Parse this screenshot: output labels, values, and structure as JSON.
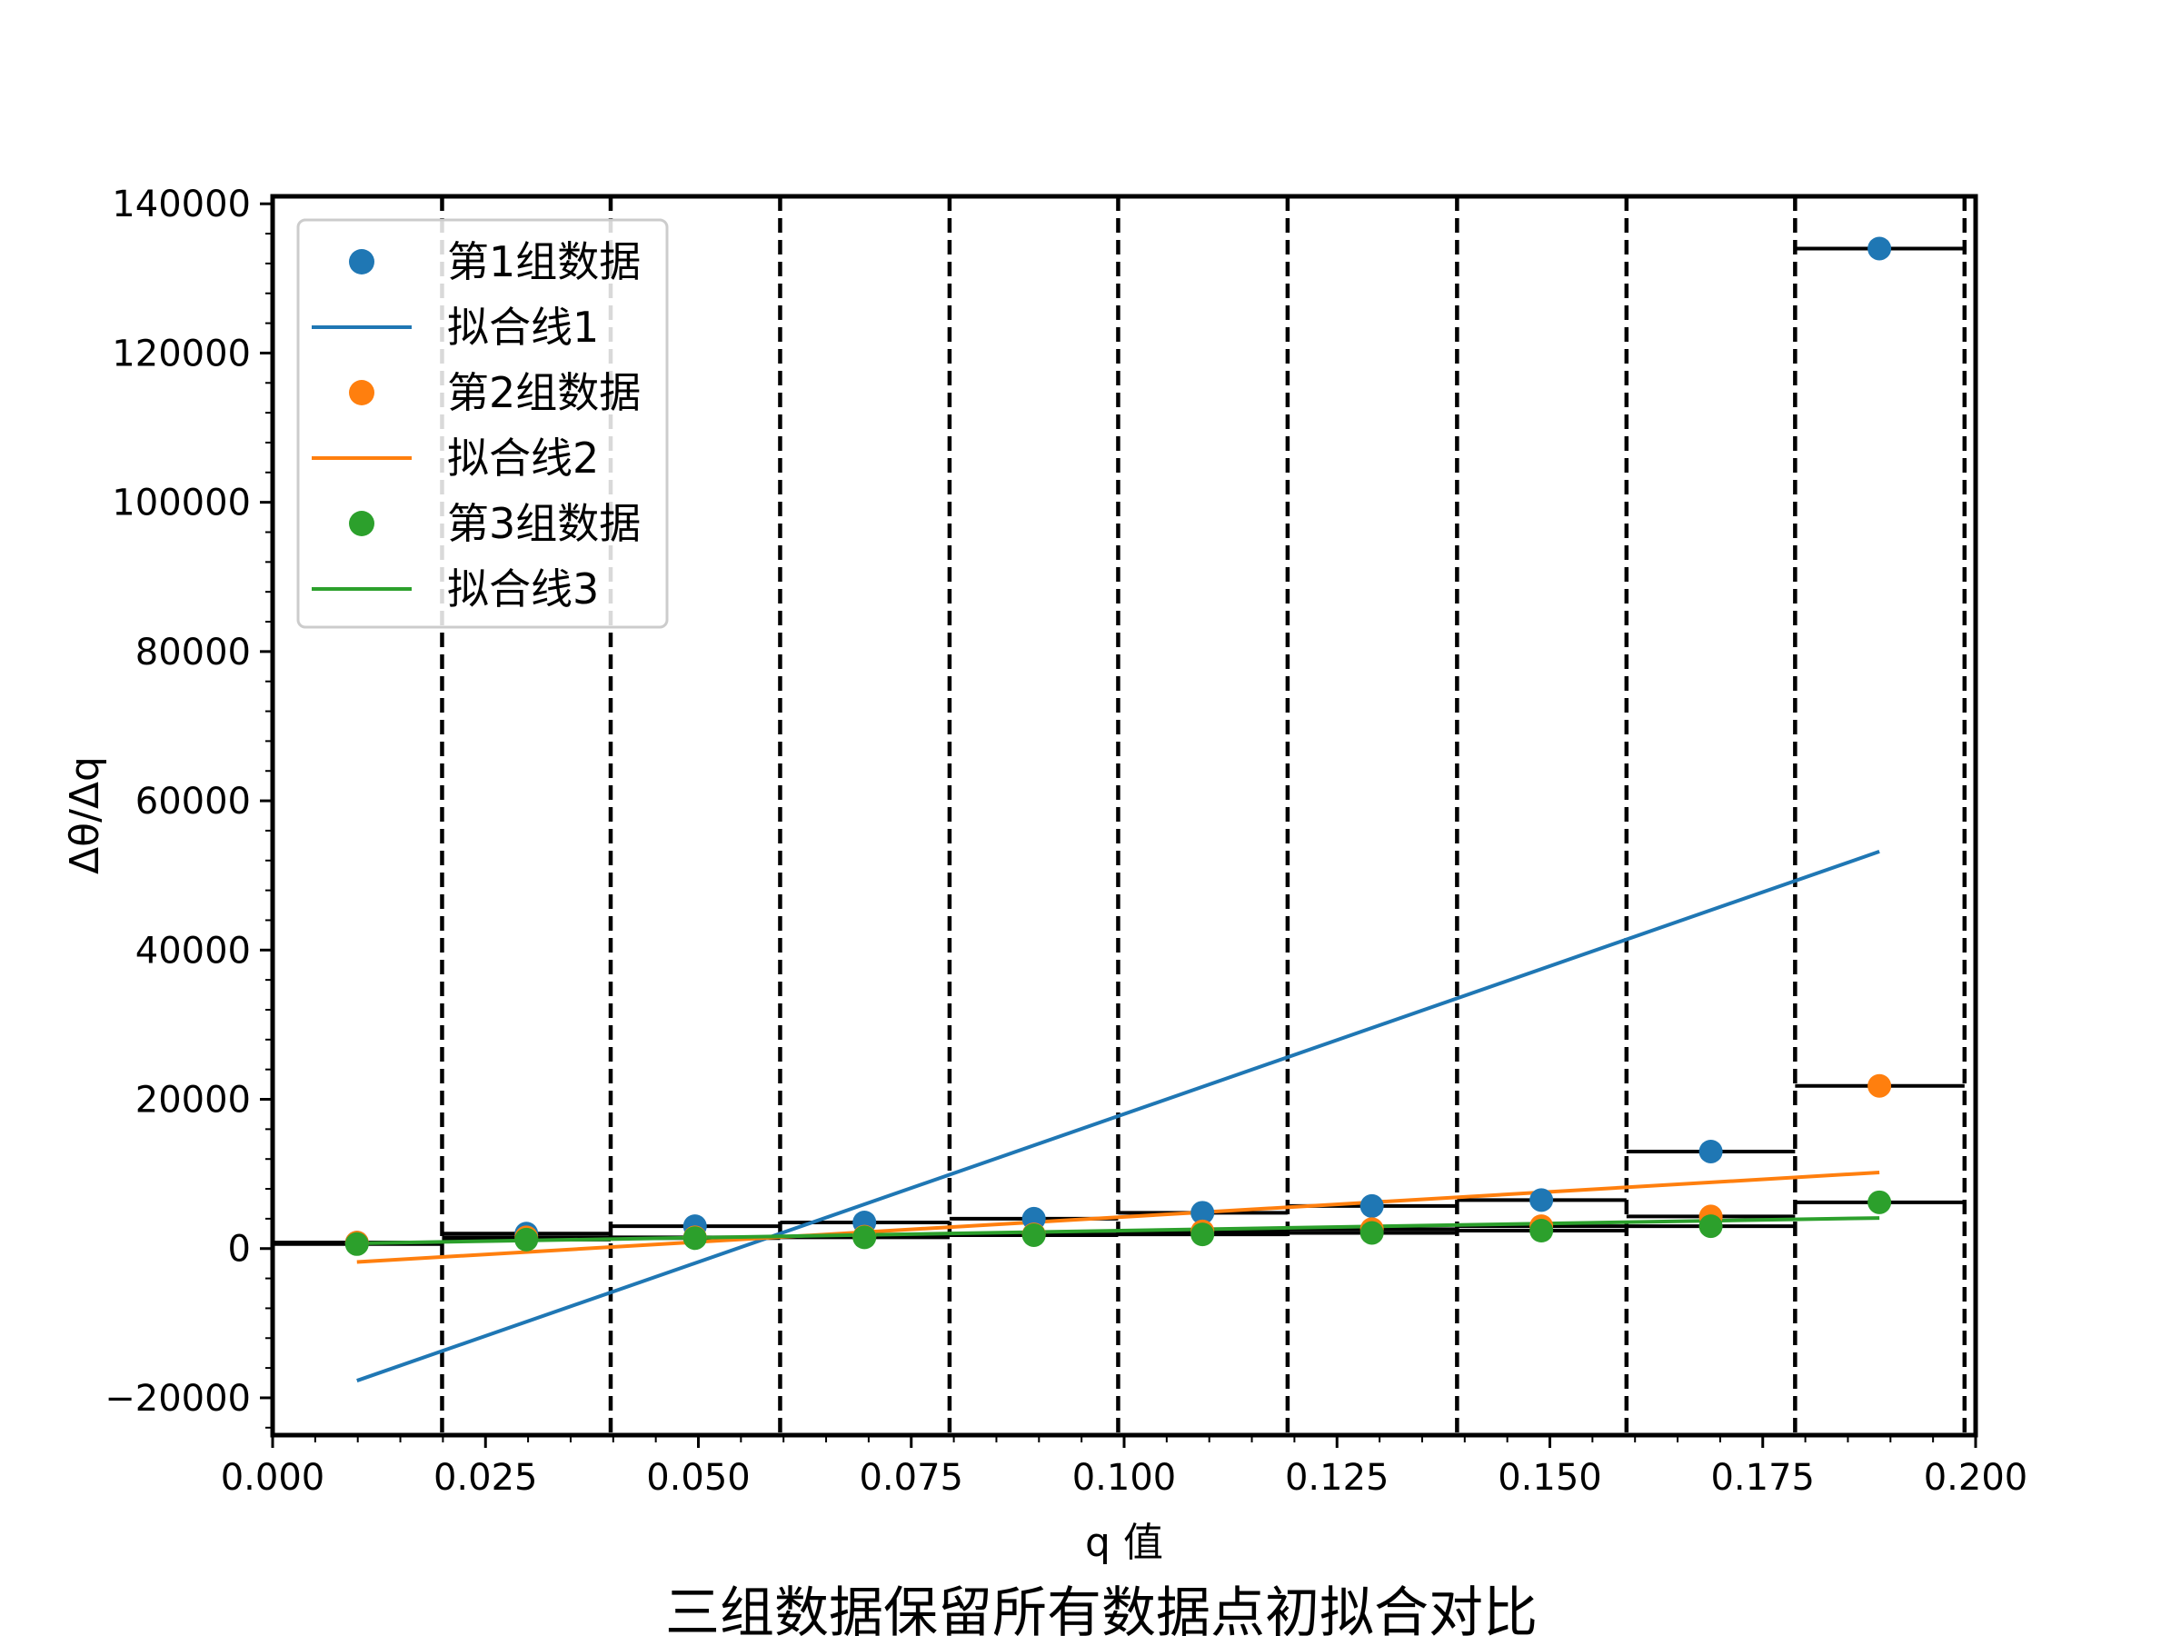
{
  "chart_data": {
    "type": "scatter",
    "title": "三组数据保留所有数据点初拟合对比",
    "xlabel": "q 值",
    "ylabel": "Δθ/Δq",
    "xlim": [
      0,
      0.2
    ],
    "ylim": [
      -25000,
      141000
    ],
    "x_ticks": [
      "0.000",
      "0.025",
      "0.050",
      "0.075",
      "0.100",
      "0.125",
      "0.150",
      "0.175",
      "0.200"
    ],
    "x_tick_values": [
      0,
      0.025,
      0.05,
      0.075,
      0.1,
      0.125,
      0.15,
      0.175,
      0.2
    ],
    "y_ticks": [
      "−20000",
      "0",
      "20000",
      "40000",
      "60000",
      "80000",
      "100000",
      "120000",
      "140000"
    ],
    "y_tick_values": [
      -20000,
      0,
      20000,
      40000,
      60000,
      80000,
      100000,
      120000,
      140000
    ],
    "grid": false,
    "legend_position": "top-left",
    "x": [
      0.0099,
      0.0298,
      0.0496,
      0.0695,
      0.0894,
      0.1092,
      0.1291,
      0.149,
      0.1689,
      0.1887
    ],
    "series": [
      {
        "name": "第1组数据",
        "kind": "scatter",
        "color": "#1f77b4",
        "values": [
          800,
          2000,
          3000,
          3500,
          4000,
          4800,
          5700,
          6500,
          13000,
          134000
        ]
      },
      {
        "name": "拟合线1",
        "kind": "line",
        "color": "#1f77b4",
        "x": [
          0.0099,
          0.1887
        ],
        "values": [
          -17700,
          53200
        ]
      },
      {
        "name": "第2组数据",
        "kind": "scatter",
        "color": "#ff7f0e",
        "values": [
          800,
          1500,
          1500,
          1600,
          1900,
          2300,
          2600,
          3000,
          4300,
          21800
        ]
      },
      {
        "name": "拟合线2",
        "kind": "line",
        "color": "#ff7f0e",
        "x": [
          0.0099,
          0.1887
        ],
        "values": [
          -1800,
          10200
        ]
      },
      {
        "name": "第3组数据",
        "kind": "scatter",
        "color": "#2ca02c",
        "values": [
          600,
          1200,
          1400,
          1500,
          1800,
          1900,
          2100,
          2400,
          3000,
          6200
        ]
      },
      {
        "name": "拟合线3",
        "kind": "line",
        "color": "#2ca02c",
        "x": [
          0.0099,
          0.1887
        ],
        "values": [
          700,
          4100
        ]
      }
    ],
    "bin_edges": [
      0,
      0.0199,
      0.0397,
      0.0596,
      0.0795,
      0.0993,
      0.1192,
      0.1391,
      0.159,
      0.1788,
      0.1987
    ],
    "bin_levels": [
      [
        800,
        2000,
        3000,
        3500,
        4000,
        4800,
        5700,
        6500,
        13000,
        134000
      ],
      [
        800,
        1500,
        1500,
        1600,
        1900,
        2300,
        2600,
        3000,
        4300,
        21800
      ],
      [
        600,
        1200,
        1400,
        1500,
        1800,
        1900,
        2100,
        2400,
        3000,
        6200
      ]
    ]
  }
}
